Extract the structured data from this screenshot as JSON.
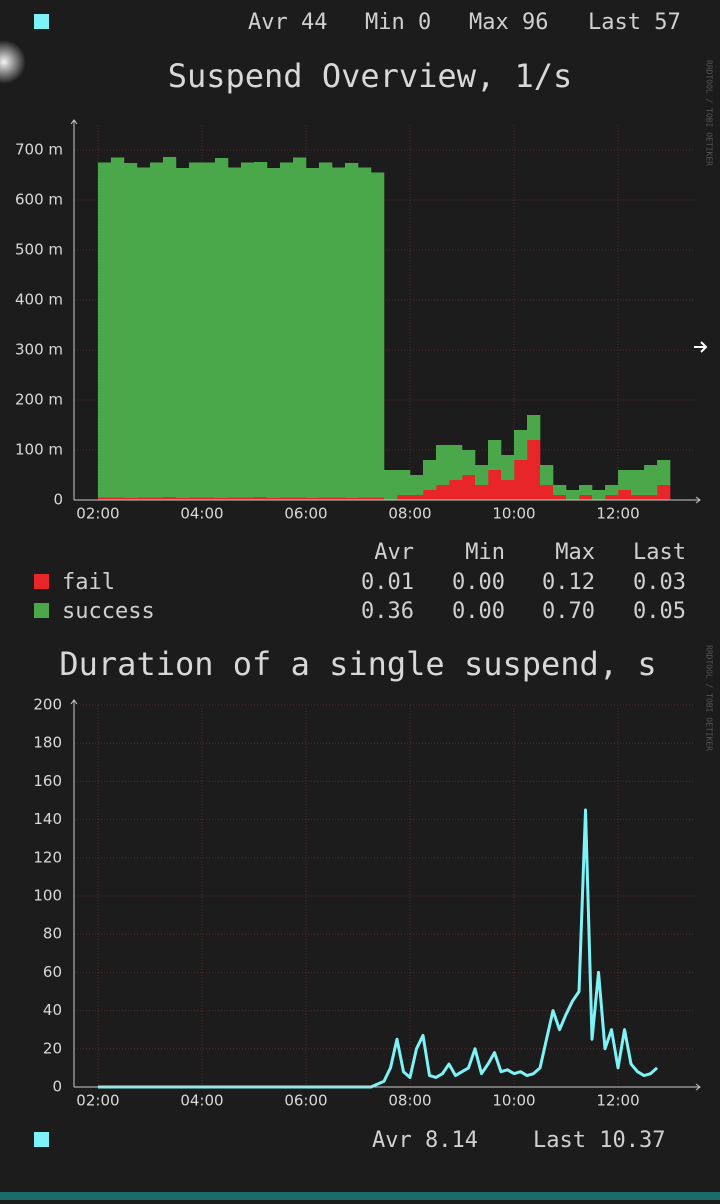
{
  "header": {
    "items": [
      "Avr 44",
      "Min 0",
      "Max 96",
      "Last 57"
    ]
  },
  "stats": {
    "columns": [
      "Avr",
      "Min",
      "Max",
      "Last"
    ],
    "rows": [
      [
        "0.01",
        "0.00",
        "0.12",
        "0.03"
      ],
      [
        "0.36",
        "0.00",
        "0.70",
        "0.05"
      ]
    ]
  },
  "footer": {
    "items": [
      "Avr 8.14",
      "Last 10.37"
    ]
  },
  "chart_data": [
    {
      "type": "stacked-bar",
      "title": "Suspend Overview, 1/s",
      "watermark": "RRDTOOL / TOBI OETIKER",
      "x": [
        2,
        2.25,
        2.5,
        2.75,
        3,
        3.25,
        3.5,
        3.75,
        4,
        4.25,
        4.5,
        4.75,
        5,
        5.25,
        5.5,
        5.75,
        6,
        6.25,
        6.5,
        6.75,
        7,
        7.25,
        7.5,
        7.75,
        8,
        8.25,
        8.5,
        8.75,
        9,
        9.25,
        9.5,
        9.75,
        10,
        10.25,
        10.5,
        10.75,
        11,
        11.25,
        11.5,
        11.75,
        12,
        12.25,
        12.5,
        12.75
      ],
      "series": [
        {
          "name": "fail",
          "color": "#e8262a",
          "values": [
            0.005,
            0.005,
            0.004,
            0.005,
            0.005,
            0.006,
            0.004,
            0.005,
            0.005,
            0.004,
            0.005,
            0.005,
            0.006,
            0.004,
            0.005,
            0.005,
            0.004,
            0.005,
            0.005,
            0.004,
            0.005,
            0.005,
            0,
            0.01,
            0.01,
            0.02,
            0.03,
            0.04,
            0.05,
            0.03,
            0.06,
            0.04,
            0.08,
            0.12,
            0.03,
            0.01,
            0,
            0.01,
            0,
            0.01,
            0.02,
            0.01,
            0.01,
            0.03
          ]
        },
        {
          "name": "success",
          "color": "#4aa84a",
          "values": [
            0.67,
            0.68,
            0.67,
            0.66,
            0.67,
            0.68,
            0.66,
            0.67,
            0.67,
            0.68,
            0.66,
            0.67,
            0.67,
            0.66,
            0.67,
            0.68,
            0.66,
            0.67,
            0.66,
            0.67,
            0.66,
            0.65,
            0.06,
            0.05,
            0.04,
            0.06,
            0.08,
            0.07,
            0.05,
            0.04,
            0.06,
            0.05,
            0.06,
            0.05,
            0.04,
            0.02,
            0.02,
            0.02,
            0.02,
            0.02,
            0.04,
            0.05,
            0.06,
            0.05
          ]
        }
      ],
      "xlim": [
        1.54,
        13.48
      ],
      "xticks": [
        {
          "value": 2,
          "label": "02:00"
        },
        {
          "value": 4,
          "label": "04:00"
        },
        {
          "value": 6,
          "label": "06:00"
        },
        {
          "value": 8,
          "label": "08:00"
        },
        {
          "value": 10,
          "label": "10:00"
        },
        {
          "value": 12,
          "label": "12:00"
        }
      ],
      "ylim": [
        0,
        0.75
      ],
      "yticks": [
        0,
        {
          "value": 0.1,
          "label": "100 m"
        },
        {
          "value": 0.2,
          "label": "200 m"
        },
        {
          "value": 0.3,
          "label": "300 m"
        },
        {
          "value": 0.4,
          "label": "400 m"
        },
        {
          "value": 0.5,
          "label": "500 m"
        },
        {
          "value": 0.6,
          "label": "600 m"
        },
        {
          "value": 0.7,
          "label": "700 m"
        }
      ],
      "grid": true
    },
    {
      "type": "line",
      "title": "Duration of a single suspend, s",
      "watermark": "RRDTOOL / TOBI OETIKER",
      "x": [
        2,
        2.25,
        2.5,
        2.75,
        3,
        3.25,
        3.5,
        3.75,
        4,
        4.25,
        4.5,
        4.75,
        5,
        5.25,
        5.5,
        5.75,
        6,
        6.25,
        6.5,
        6.75,
        7,
        7.25,
        7.5,
        7.625,
        7.75,
        7.875,
        8,
        8.125,
        8.25,
        8.375,
        8.5,
        8.625,
        8.75,
        8.875,
        9,
        9.125,
        9.25,
        9.375,
        9.5,
        9.625,
        9.75,
        9.875,
        10,
        10.125,
        10.25,
        10.375,
        10.5,
        10.625,
        10.75,
        10.875,
        11,
        11.125,
        11.25,
        11.375,
        11.5,
        11.625,
        11.75,
        11.875,
        12,
        12.125,
        12.25,
        12.375,
        12.5,
        12.625,
        12.75
      ],
      "series": [
        {
          "color": "#7ef3f7",
          "values": [
            0,
            0,
            0,
            0,
            0,
            0,
            0,
            0,
            0,
            0,
            0,
            0,
            0,
            0,
            0,
            0,
            0,
            0,
            0,
            0,
            0,
            0,
            3,
            10,
            25,
            8,
            5,
            20,
            27,
            6,
            5,
            7,
            12,
            6,
            8,
            10,
            20,
            7,
            12,
            18,
            8,
            9,
            7,
            8,
            6,
            7,
            10,
            25,
            40,
            30,
            38,
            45,
            50,
            145,
            25,
            60,
            20,
            30,
            10,
            30,
            12,
            8,
            6,
            7,
            10
          ]
        }
      ],
      "xlim": [
        1.54,
        13.48
      ],
      "xticks": [
        {
          "value": 2,
          "label": "02:00"
        },
        {
          "value": 4,
          "label": "04:00"
        },
        {
          "value": 6,
          "label": "06:00"
        },
        {
          "value": 8,
          "label": "08:00"
        },
        {
          "value": 10,
          "label": "10:00"
        },
        {
          "value": 12,
          "label": "12:00"
        }
      ],
      "ylim": [
        0,
        200
      ],
      "yticks": [
        0,
        20,
        40,
        60,
        80,
        100,
        120,
        140,
        160,
        180,
        200
      ],
      "grid": true
    }
  ]
}
